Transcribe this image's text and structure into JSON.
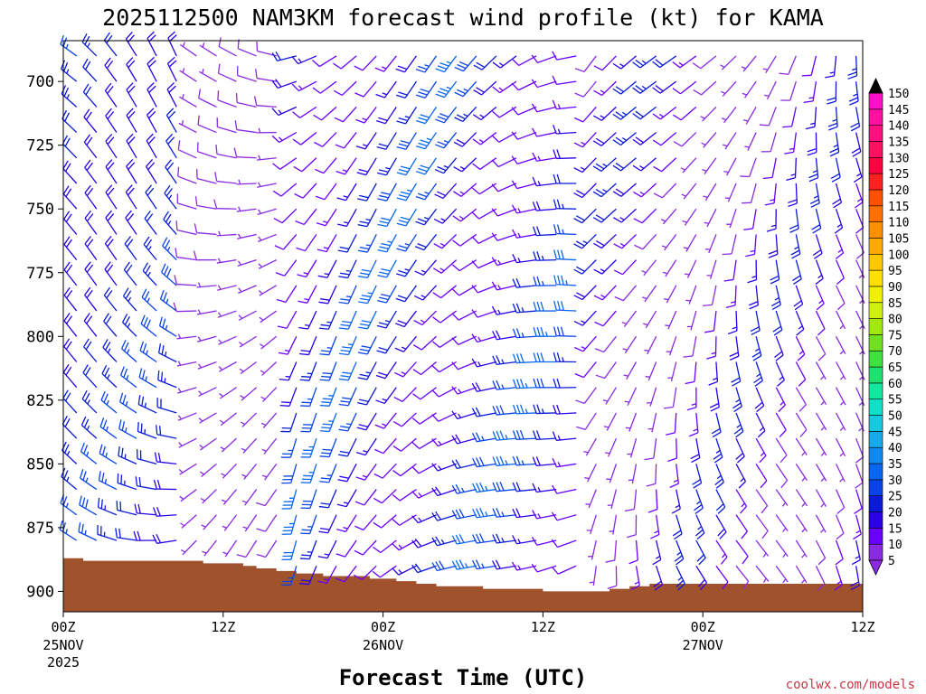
{
  "chart_data": {
    "type": "wind-barb-profile",
    "title": "2025112500 NAM3KM forecast wind profile (kt) for KAMA",
    "xlabel": "Forecast Time (UTC)",
    "ylabel": "",
    "x_ticks": [
      {
        "hours": 0,
        "label": "00Z",
        "sublabel": "25NOV",
        "year": "2025"
      },
      {
        "hours": 12,
        "label": "12Z",
        "sublabel": "",
        "year": ""
      },
      {
        "hours": 24,
        "label": "00Z",
        "sublabel": "26NOV",
        "year": ""
      },
      {
        "hours": 36,
        "label": "12Z",
        "sublabel": "",
        "year": ""
      },
      {
        "hours": 48,
        "label": "00Z",
        "sublabel": "27NOV",
        "year": ""
      },
      {
        "hours": 60,
        "label": "12Z",
        "sublabel": "",
        "year": ""
      }
    ],
    "xlim": [
      0,
      60
    ],
    "y_ticks": [
      700,
      725,
      750,
      775,
      800,
      825,
      850,
      875,
      900
    ],
    "ylim": [
      684,
      908
    ],
    "colorbar": {
      "unit": "kt",
      "levels": [
        5,
        10,
        15,
        20,
        25,
        30,
        35,
        40,
        45,
        50,
        55,
        60,
        65,
        70,
        75,
        80,
        85,
        90,
        95,
        100,
        105,
        110,
        115,
        120,
        125,
        130,
        135,
        140,
        145,
        150
      ],
      "colors": [
        "#8a2be2",
        "#6a00ff",
        "#2a00e6",
        "#0a1ad6",
        "#0a44e6",
        "#0a66ee",
        "#1088f0",
        "#18aae8",
        "#18c8e0",
        "#10e0c8",
        "#10e8a0",
        "#20e070",
        "#40e040",
        "#70e020",
        "#a0e810",
        "#d0f010",
        "#f0f000",
        "#ffe000",
        "#ffc800",
        "#ffaa00",
        "#ff9000",
        "#ff7000",
        "#ff5000",
        "#ff2020",
        "#ff0040",
        "#ff1060",
        "#ff1080",
        "#ff10a0",
        "#ff10c8",
        "#ff20e8"
      ]
    },
    "surface_pressure": {
      "hours": [
        0,
        1.5,
        3,
        5,
        7,
        9,
        10.5,
        12,
        13.5,
        14.5,
        16,
        17.5,
        19.5,
        21,
        23,
        25,
        26.5,
        28,
        30,
        31.5,
        33,
        34.5,
        36,
        37.5,
        39,
        41,
        42.5,
        44,
        46,
        48,
        50,
        52,
        54,
        56,
        58,
        60
      ],
      "values": [
        887,
        888,
        888,
        888,
        888,
        888,
        889,
        889,
        890,
        891,
        892,
        893,
        894,
        894,
        895,
        896,
        897,
        898,
        898,
        899,
        899,
        899,
        900,
        900,
        900,
        899,
        898,
        897,
        897,
        897,
        897,
        897,
        897,
        897,
        897,
        898
      ]
    },
    "barb_grid": {
      "hours_step": 1.5,
      "levels_step": 10,
      "level_top": 690,
      "level_bottom": 900
    },
    "wind_regimes": [
      {
        "from_hours": 0,
        "to_hours": 10,
        "direction_deg": 300,
        "speed_kt": [
          18,
          28
        ]
      },
      {
        "from_hours": 10,
        "to_hours": 17,
        "direction_deg": 270,
        "speed_kt": [
          5,
          10
        ]
      },
      {
        "from_hours": 17,
        "to_hours": 40,
        "direction_deg": 250,
        "speed_kt": [
          10,
          35
        ]
      },
      {
        "from_hours": 40,
        "to_hours": 60,
        "direction_deg": 200,
        "speed_kt": [
          5,
          25
        ]
      }
    ]
  },
  "credit": "coolwx.com/models"
}
